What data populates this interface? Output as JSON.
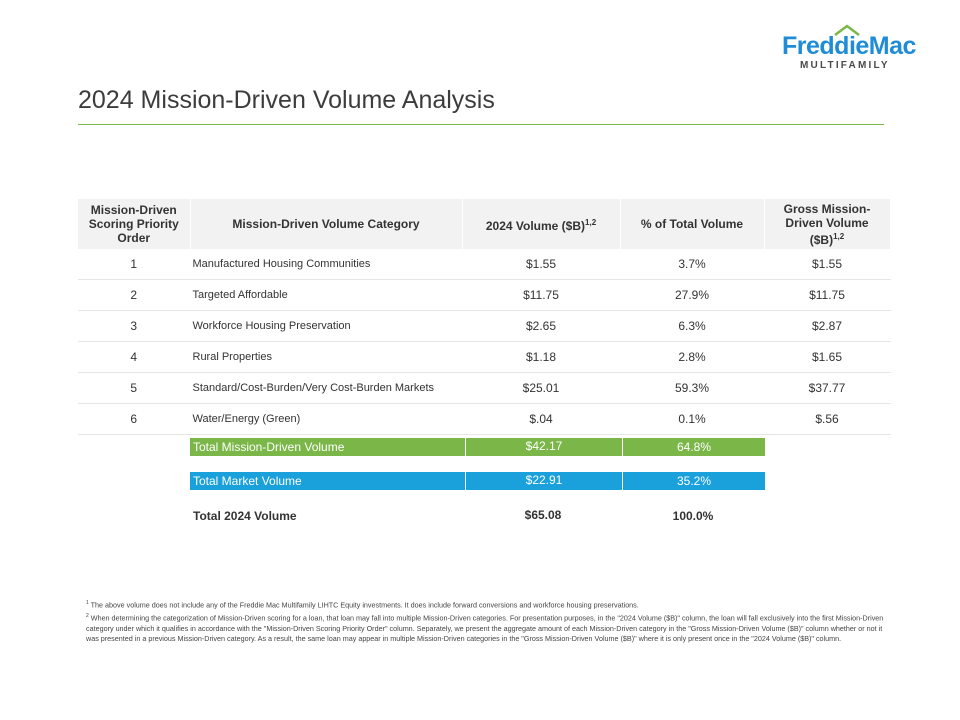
{
  "logo": {
    "brand": "FreddieMac",
    "division": "MULTIFAMILY",
    "brand_color": "#1f8dd6",
    "roof_color": "#7ab648"
  },
  "page": {
    "title": "2024 Mission-Driven Volume Analysis"
  },
  "table": {
    "headers": {
      "order": "Mission-Driven Scoring Priority Order",
      "category": "Mission-Driven Volume Category",
      "volume": "2024 Volume ($B)",
      "volume_sup": "1,2",
      "pct": "% of Total Volume",
      "gross": "Gross Mission-Driven Volume ($B)",
      "gross_sup": "1,2"
    },
    "rows": [
      {
        "order": "1",
        "category": "Manufactured Housing Communities",
        "volume": "$1.55",
        "pct": "3.7%",
        "gross": "$1.55"
      },
      {
        "order": "2",
        "category": "Targeted Affordable",
        "volume": "$11.75",
        "pct": "27.9%",
        "gross": "$11.75"
      },
      {
        "order": "3",
        "category": "Workforce Housing Preservation",
        "volume": "$2.65",
        "pct": "6.3%",
        "gross": "$2.87"
      },
      {
        "order": "4",
        "category": "Rural Properties",
        "volume": "$1.18",
        "pct": "2.8%",
        "gross": "$1.65"
      },
      {
        "order": "5",
        "category": "Standard/Cost-Burden/Very Cost-Burden Markets",
        "volume": "$25.01",
        "pct": "59.3%",
        "gross": "$37.77"
      },
      {
        "order": "6",
        "category": "Water/Energy (Green)",
        "volume": "$.04",
        "pct": "0.1%",
        "gross": "$.56"
      }
    ]
  },
  "totals": {
    "mission": {
      "label": "Total Mission-Driven Volume",
      "volume": "$42.17",
      "pct": "64.8%",
      "color": "#7ab648"
    },
    "market": {
      "label": "Total Market Volume",
      "volume": "$22.91",
      "pct": "35.2%",
      "color": "#1aa0db"
    },
    "total": {
      "label": "Total 2024 Volume",
      "volume": "$65.08",
      "pct": "100.0%"
    }
  },
  "footnotes": {
    "n1_marker": "1",
    "n1": "The above volume does not include any of the Freddie Mac Multifamily LIHTC Equity investments. It does include forward conversions and workforce housing preservations.",
    "n2_marker": "2",
    "n2": "When determining the categorization of Mission-Driven scoring for a loan, that loan may fall into multiple Mission-Driven categories. For presentation purposes, in the \"2024 Volume ($B)\" column, the loan will fall exclusively into the first Mission-Driven category under which it qualifies in accordance with the \"Mission-Driven Scoring Priority Order\" column. Separately, we present the aggregate amount of each Mission-Driven category in the \"Gross Mission-Driven Volume ($B)\" column whether or not it was presented in a previous Mission-Driven category. As a result, the same loan may appear in multiple Mission-Driven categories in the \"Gross Mission-Driven Volume ($B)\" where it is only present once in the \"2024 Volume ($B)\" column."
  }
}
